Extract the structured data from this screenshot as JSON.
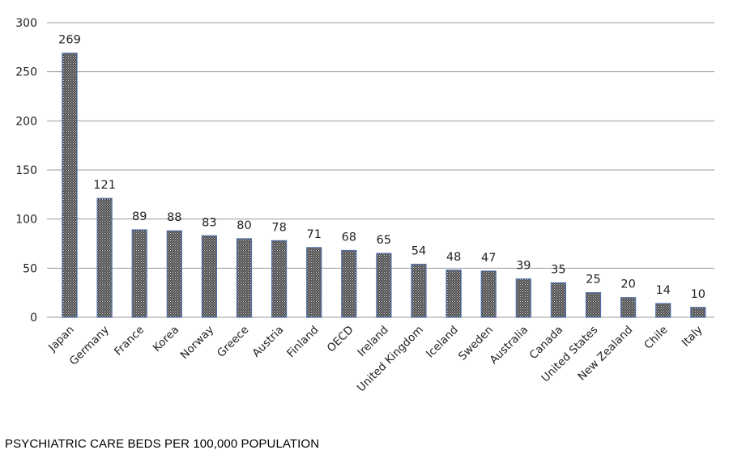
{
  "caption": "PSYCHIATRIC CARE BEDS PER 100,000 POPULATION",
  "colors": {
    "bar_fill": "#4a4a4a",
    "bar_stroke": "#4f6fa8",
    "grid": "#9a9a9a",
    "pattern_dot": "#d9d9d9"
  },
  "chart_data": {
    "type": "bar",
    "title": "",
    "xlabel": "",
    "ylabel": "",
    "ylim": [
      0,
      300
    ],
    "yticks": [
      0,
      50,
      100,
      150,
      200,
      250,
      300
    ],
    "ytick_labels": [
      "0",
      "50",
      "100",
      "150",
      "200",
      "250",
      "300"
    ],
    "grid": true,
    "categories": [
      "Japan",
      "Germany",
      "France",
      "Korea",
      "Norway",
      "Greece",
      "Austria",
      "Finland",
      "OECD",
      "Ireland",
      "United Kingdom",
      "Iceland",
      "Sweden",
      "Australia",
      "Canada",
      "United States",
      "New Zealand",
      "Chile",
      "Italy"
    ],
    "values": [
      269,
      121,
      89,
      88,
      83,
      80,
      78,
      71,
      68,
      65,
      54,
      48,
      47,
      39,
      35,
      25,
      20,
      14,
      10
    ],
    "data_labels": [
      "269",
      "121",
      "89",
      "88",
      "83",
      "80",
      "78",
      "71",
      "68",
      "65",
      "54",
      "48",
      "47",
      "39",
      "35",
      "25",
      "20",
      "14",
      "10"
    ]
  }
}
